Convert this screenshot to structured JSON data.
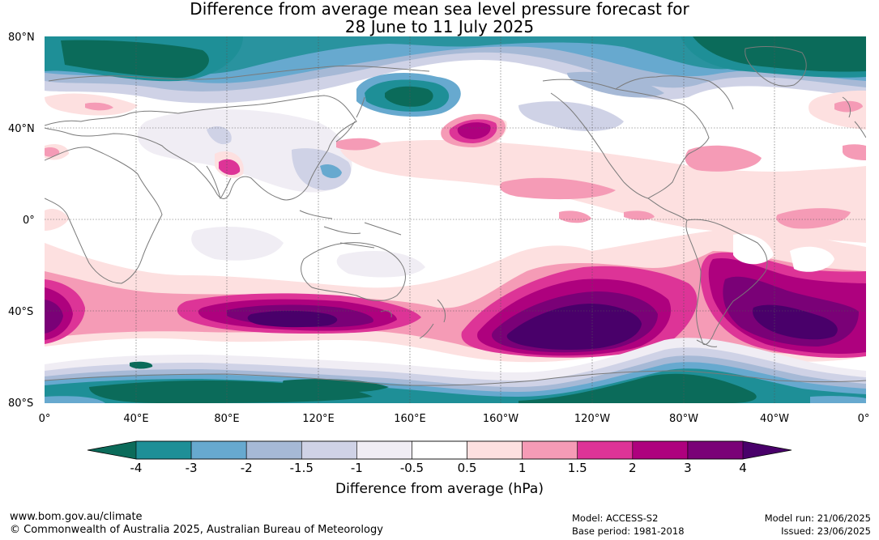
{
  "title": {
    "line1": "Difference from average mean sea level pressure forecast for",
    "line2": "28 June to 11 July 2025"
  },
  "map": {
    "lat_labels": [
      "80°N",
      "40°N",
      "0°",
      "40°S",
      "80°S"
    ],
    "lon_labels": [
      "0°",
      "40°E",
      "80°E",
      "120°E",
      "160°E",
      "160°W",
      "120°W",
      "80°W",
      "40°W",
      "0°"
    ]
  },
  "colorbar": {
    "title": "Difference from average (hPa)",
    "ticks": [
      "-4",
      "-3",
      "-2",
      "-1.5",
      "-1",
      "-0.5",
      "0.5",
      "1",
      "1.5",
      "2",
      "3",
      "4"
    ],
    "colors": {
      "below_min": "#0b6b5a",
      "bins": [
        "#1e8f97",
        "#67a9cf",
        "#a6b9d6",
        "#cfd2e6",
        "#f0edf4",
        "#ffffff",
        "#fde0e0",
        "#f59bb6",
        "#dd3497",
        "#ae017e",
        "#7a0177"
      ],
      "above_max": "#49006a"
    }
  },
  "footer": {
    "website": "www.bom.gov.au/climate",
    "copyright": "© Commonwealth of Australia 2025, Australian Bureau of Meteorology",
    "model": "Model: ACCESS-S2",
    "base_period": "Base period: 1981-2018",
    "model_run": "Model run: 21/06/2025",
    "issued": "Issued: 23/06/2025"
  }
}
